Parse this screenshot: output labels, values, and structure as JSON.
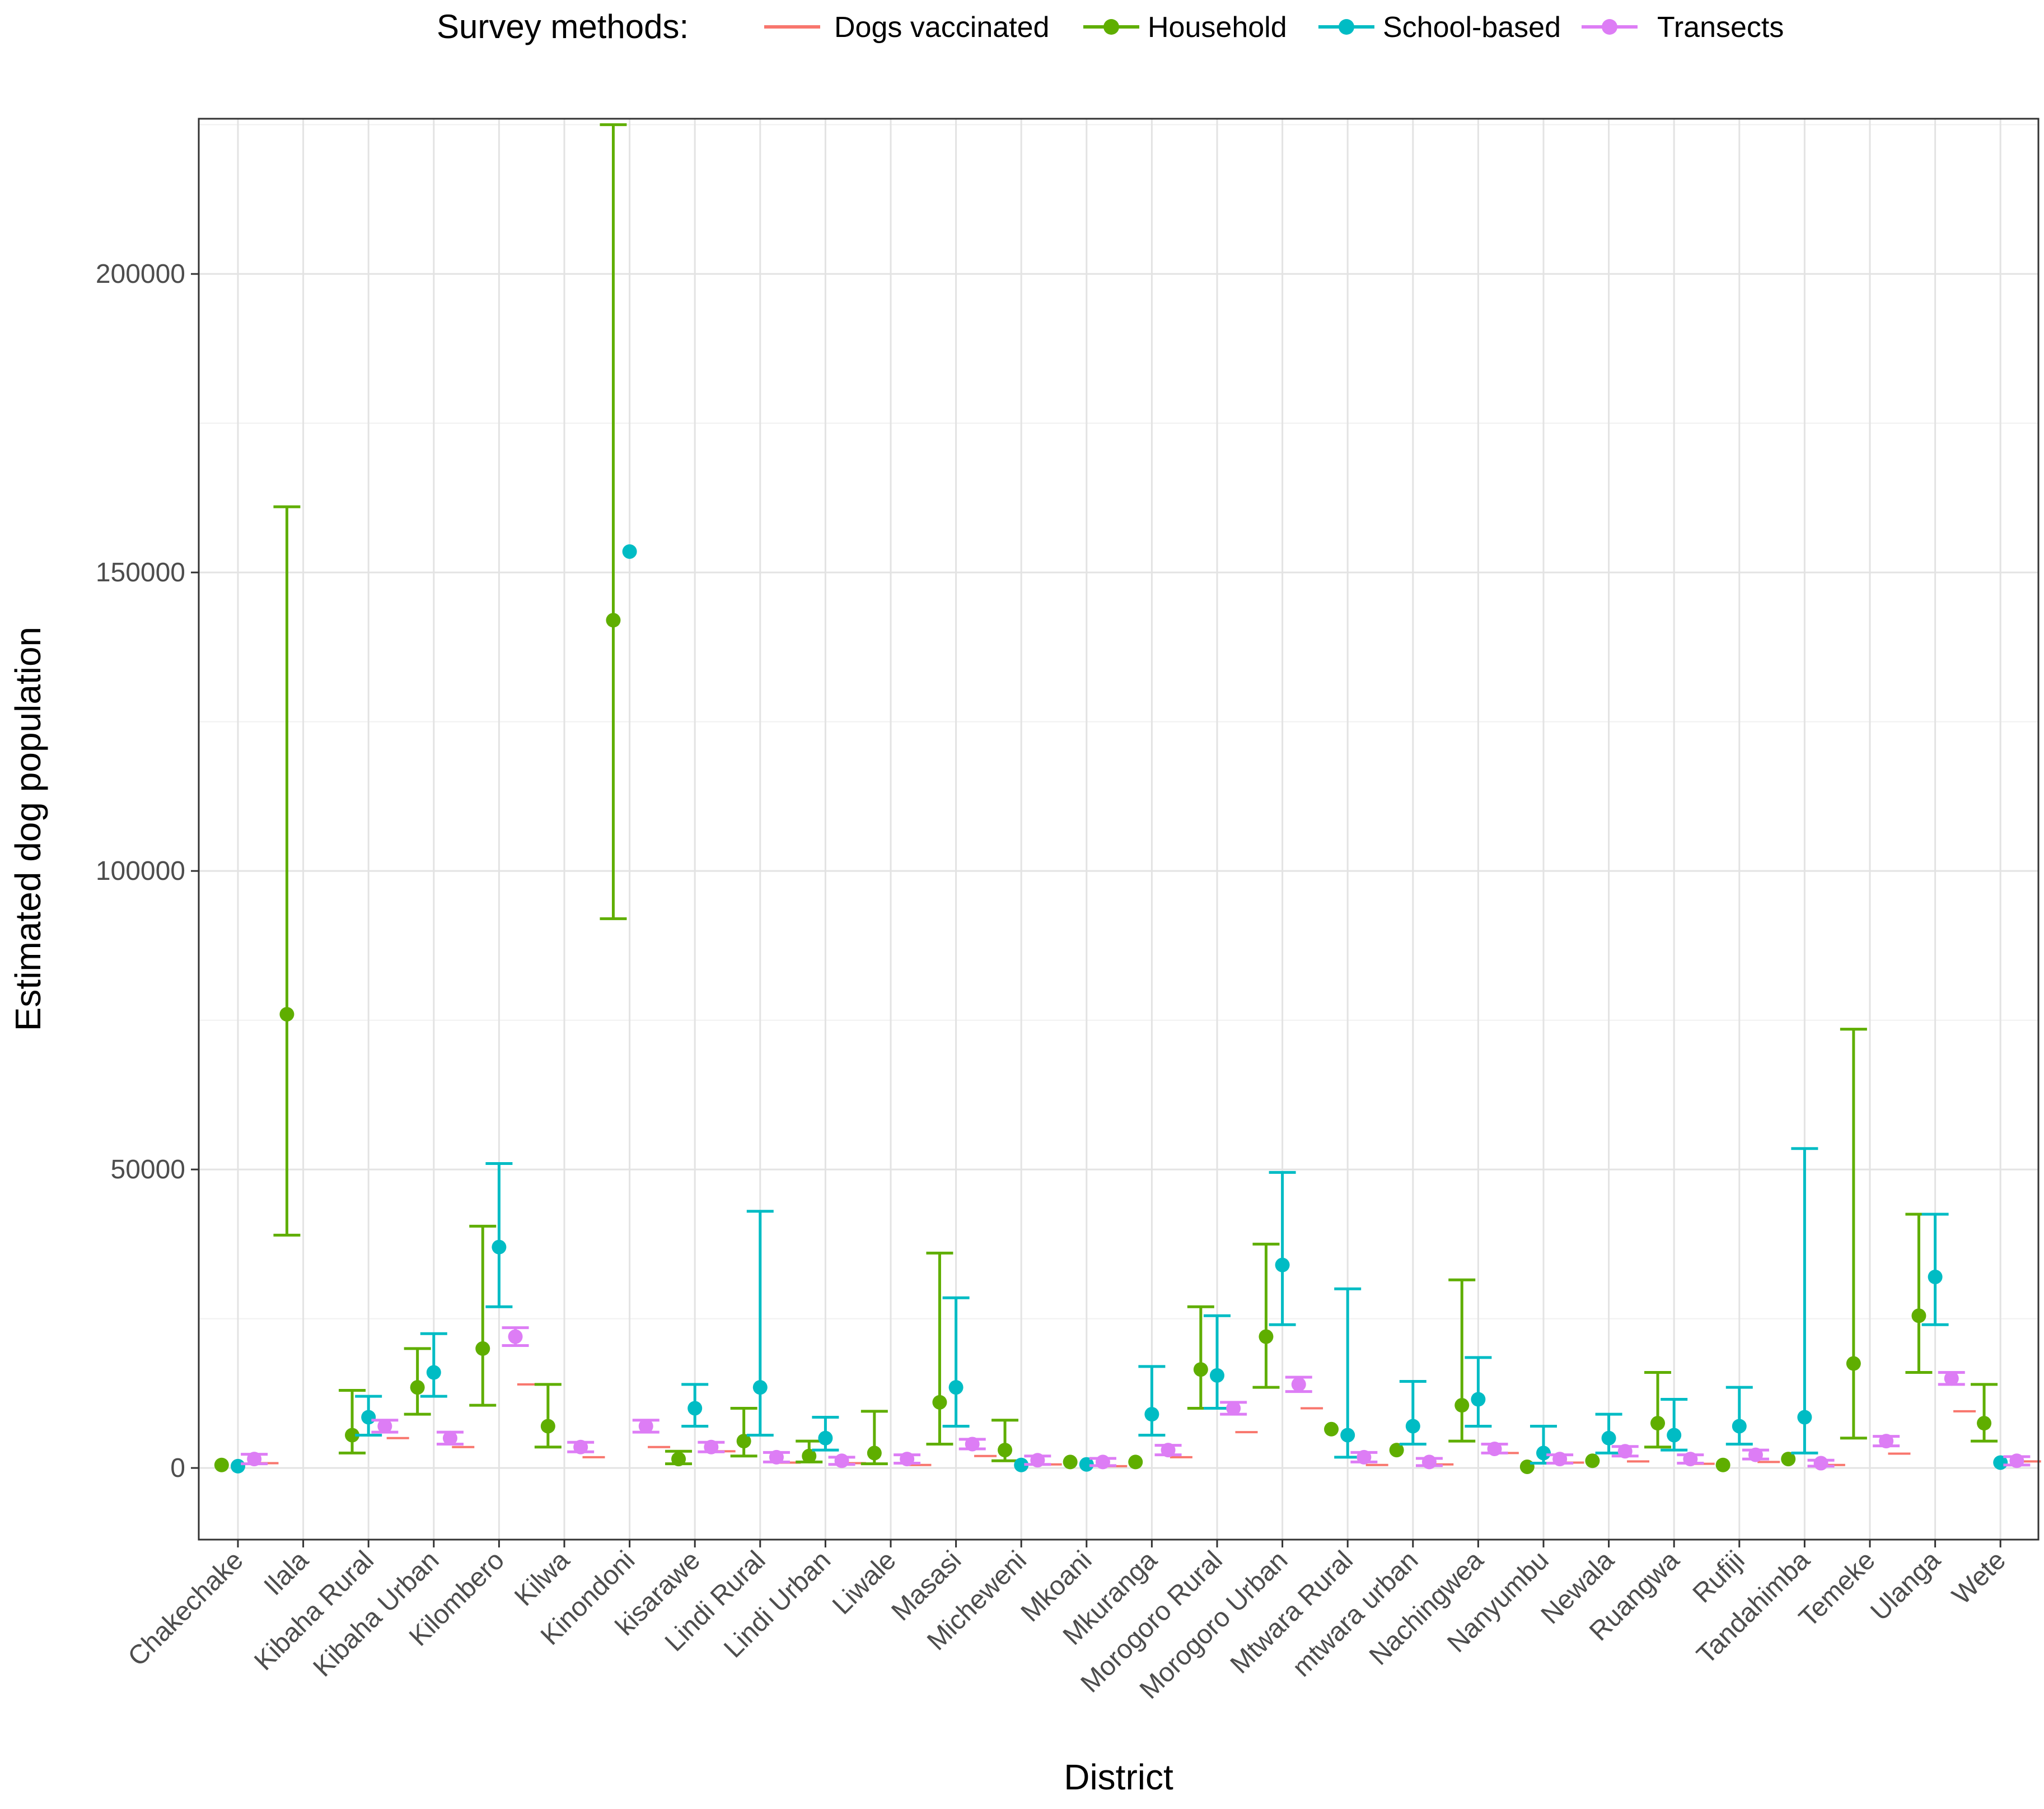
{
  "chart_data": {
    "type": "scatter",
    "subtype": "point-range by category, dodged by method",
    "xlabel": "District",
    "ylabel": "Estimated dog population",
    "ylim": [
      -12000,
      226000
    ],
    "y_ticks": [
      0,
      50000,
      100000,
      150000,
      200000
    ],
    "y_tick_labels": [
      "0",
      "50000",
      "100000",
      "150000",
      "200000"
    ],
    "grid": true,
    "legend": {
      "title": "Survey methods:",
      "position": "top",
      "entries": [
        "Dogs vaccinated",
        "Household",
        "School-based",
        "Transects"
      ]
    },
    "categories": [
      "Chakechake",
      "Ilala",
      "Kibaha Rural",
      "Kibaha Urban",
      "Kilombero",
      "Kilwa",
      "Kinondoni",
      "kisarawe",
      "Lindi Rural",
      "Lindi Urban",
      "Liwale",
      "Masasi",
      "Micheweni",
      "Mkoani",
      "Mkuranga",
      "Morogoro Rural",
      "Morogoro Urban",
      "Mtwara Rural",
      "mtwara urban",
      "Nachingwea",
      "Nanyumbu",
      "Newala",
      "Ruangwa",
      "Rufiji",
      "Tandahimba",
      "Temeke",
      "Ulanga",
      "Wete"
    ],
    "series": [
      {
        "name": "Dogs vaccinated",
        "color": "#f8766d",
        "offset": 0.45,
        "values": [
          800,
          null,
          5000,
          3500,
          14000,
          1800,
          3500,
          2800,
          900,
          800,
          500,
          2000,
          600,
          300,
          1800,
          6000,
          10000,
          500,
          600,
          2500,
          900,
          1100,
          700,
          1000,
          500,
          2400,
          9500,
          1100
        ],
        "lower": [
          null,
          null,
          null,
          null,
          null,
          null,
          null,
          null,
          null,
          null,
          null,
          null,
          null,
          null,
          null,
          null,
          null,
          null,
          null,
          null,
          null,
          null,
          null,
          null,
          null,
          null,
          null,
          null
        ],
        "upper": [
          null,
          null,
          null,
          null,
          null,
          null,
          null,
          null,
          null,
          null,
          null,
          null,
          null,
          null,
          null,
          null,
          null,
          null,
          null,
          null,
          null,
          null,
          null,
          null,
          null,
          null,
          null,
          null
        ]
      },
      {
        "name": "Household",
        "color": "#5fae00",
        "offset": -0.25,
        "values": [
          500,
          76000,
          5500,
          13500,
          20000,
          7000,
          142000,
          1500,
          4500,
          2000,
          2500,
          11000,
          3000,
          1000,
          1000,
          16500,
          22000,
          6500,
          3000,
          10500,
          200,
          1200,
          7500,
          500,
          1500,
          17500,
          25500,
          7500
        ],
        "lower": [
          null,
          39000,
          2500,
          9000,
          10500,
          3500,
          92000,
          700,
          2000,
          1000,
          700,
          4000,
          1200,
          null,
          null,
          10000,
          13500,
          null,
          null,
          4500,
          null,
          null,
          3500,
          null,
          null,
          5000,
          16000,
          4500
        ],
        "upper": [
          null,
          161000,
          13000,
          20000,
          40500,
          14000,
          225000,
          2800,
          10000,
          4500,
          9500,
          36000,
          8000,
          null,
          null,
          27000,
          37500,
          null,
          null,
          31500,
          null,
          null,
          16000,
          null,
          null,
          73500,
          42500,
          14000
        ]
      },
      {
        "name": "School-based",
        "color": "#00bcc4",
        "offset": 0.0,
        "values": [
          300,
          null,
          8500,
          16000,
          37000,
          null,
          153500,
          10000,
          13500,
          5000,
          null,
          13500,
          500,
          600,
          9000,
          15500,
          34000,
          5500,
          7000,
          11500,
          2500,
          5000,
          5500,
          7000,
          8500,
          null,
          32000,
          900
        ],
        "lower": [
          null,
          null,
          5500,
          12000,
          27000,
          null,
          null,
          7000,
          5500,
          3000,
          null,
          7000,
          null,
          null,
          5500,
          10000,
          24000,
          1800,
          4000,
          7000,
          800,
          2500,
          3000,
          4000,
          2500,
          null,
          24000,
          null
        ],
        "upper": [
          null,
          null,
          12000,
          22500,
          51000,
          null,
          null,
          14000,
          43000,
          8500,
          null,
          28500,
          null,
          null,
          17000,
          25500,
          49500,
          30000,
          14500,
          18500,
          7000,
          9000,
          11500,
          13500,
          53500,
          null,
          42500,
          3000
        ]
      },
      {
        "name": "Transects",
        "color": "#dd7df5",
        "offset": 0.25,
        "values": [
          1500,
          null,
          7000,
          5000,
          22000,
          3500,
          7000,
          3500,
          1800,
          1200,
          1500,
          4000,
          1300,
          1000,
          3000,
          10000,
          14000,
          1800,
          1000,
          3200,
          1500,
          2800,
          1500,
          2200,
          800,
          4500,
          15000,
          1200
        ],
        "lower": [
          700,
          null,
          6000,
          4000,
          20500,
          2700,
          6000,
          2700,
          1000,
          600,
          800,
          3200,
          600,
          400,
          2200,
          9000,
          12800,
          1000,
          400,
          2500,
          800,
          2000,
          800,
          1500,
          300,
          3700,
          14000,
          500
        ],
        "upper": [
          2300,
          null,
          8000,
          6000,
          23500,
          4300,
          8000,
          4300,
          2600,
          1800,
          2200,
          4800,
          2000,
          1600,
          3800,
          11000,
          15200,
          2600,
          1600,
          4000,
          2200,
          3600,
          2200,
          3000,
          1300,
          5300,
          16000,
          1900
        ]
      }
    ]
  }
}
